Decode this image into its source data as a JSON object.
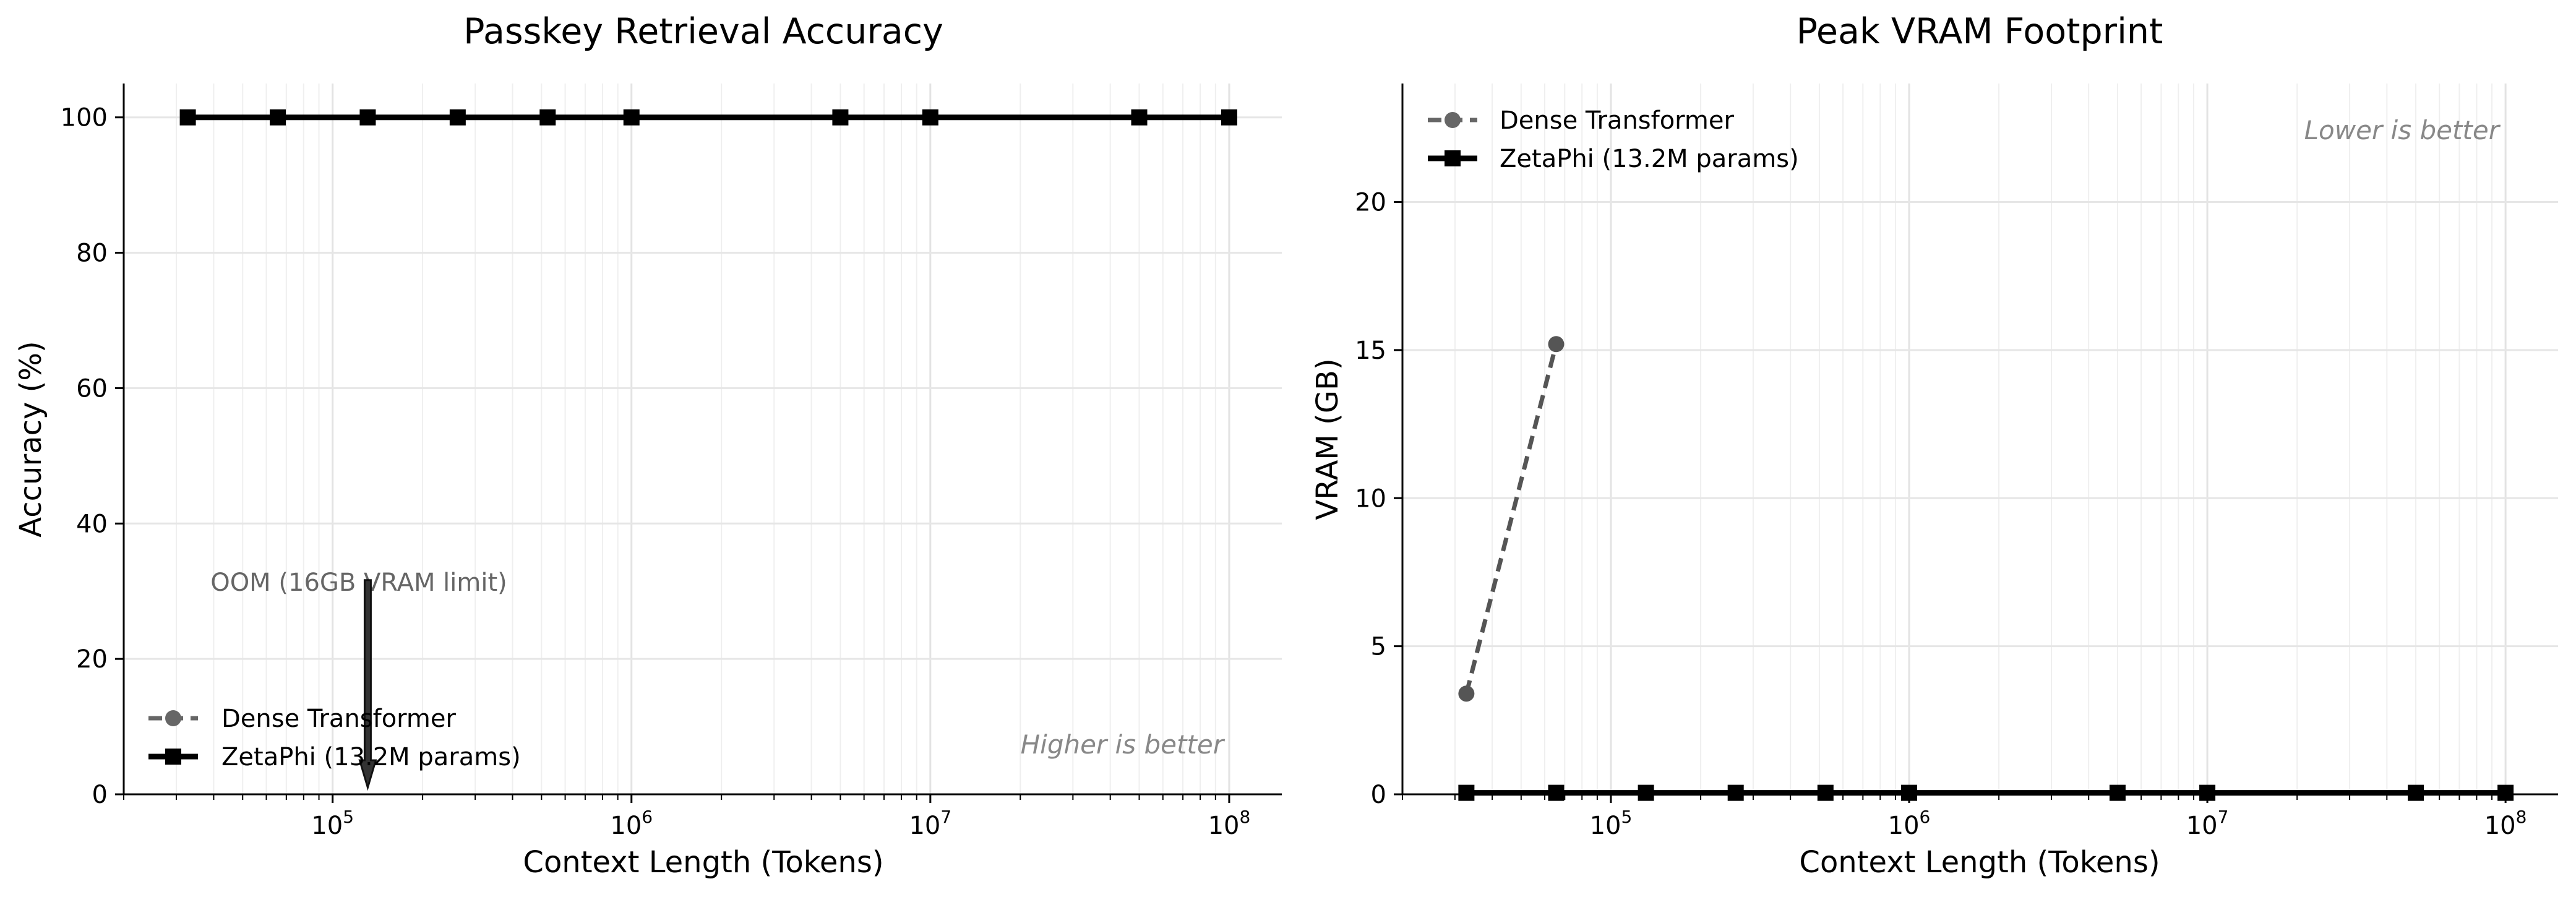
{
  "chart_data": [
    {
      "type": "line",
      "title": "Passkey Retrieval Accuracy",
      "xlabel": "Context Length (Tokens)",
      "ylabel": "Accuracy (%)",
      "xscale": "log",
      "xlim": [
        20000,
        150000000
      ],
      "ylim": [
        0,
        105
      ],
      "xticks": [
        {
          "value": 100000,
          "base": "10",
          "exp": "5"
        },
        {
          "value": 1000000,
          "base": "10",
          "exp": "6"
        },
        {
          "value": 10000000,
          "base": "10",
          "exp": "7"
        },
        {
          "value": 100000000,
          "base": "10",
          "exp": "8"
        }
      ],
      "yticks": [
        0,
        20,
        40,
        60,
        80,
        100
      ],
      "grid": true,
      "legend_position": "lower-left",
      "series": [
        {
          "name": "Dense Transformer",
          "color": "#666666",
          "marker": "circle",
          "linestyle": "dashed",
          "x": [],
          "y": []
        },
        {
          "name": "ZetaPhi (13.2M params)",
          "color": "#000000",
          "marker": "square",
          "linestyle": "solid",
          "x": [
            32768,
            65536,
            131072,
            262144,
            524288,
            1000000,
            5000000,
            10000000,
            50000000,
            100000000
          ],
          "y": [
            100,
            100,
            100,
            100,
            100,
            100,
            100,
            100,
            100,
            100
          ]
        }
      ],
      "annotations": [
        {
          "text": "OOM (16GB VRAM limit)",
          "x": 131072,
          "y": 30,
          "arrow_to_y": 1,
          "color": "#666666"
        },
        {
          "text": "Higher is better",
          "position": "lower-right",
          "italic": true,
          "color": "#888888"
        }
      ]
    },
    {
      "type": "line",
      "title": "Peak VRAM Footprint",
      "xlabel": "Context Length (Tokens)",
      "ylabel": "VRAM (GB)",
      "xscale": "log",
      "xlim": [
        20000,
        150000000
      ],
      "ylim": [
        0,
        24
      ],
      "xticks": [
        {
          "value": 100000,
          "base": "10",
          "exp": "5"
        },
        {
          "value": 1000000,
          "base": "10",
          "exp": "6"
        },
        {
          "value": 10000000,
          "base": "10",
          "exp": "7"
        },
        {
          "value": 100000000,
          "base": "10",
          "exp": "8"
        }
      ],
      "yticks": [
        0,
        5,
        10,
        15,
        20
      ],
      "grid": true,
      "legend_position": "upper-left",
      "series": [
        {
          "name": "Dense Transformer",
          "color": "#555555",
          "marker": "circle",
          "linestyle": "dashed",
          "x": [
            32768,
            65536
          ],
          "y": [
            3.4,
            15.2
          ]
        },
        {
          "name": "ZetaPhi (13.2M params)",
          "color": "#000000",
          "marker": "square",
          "linestyle": "solid",
          "x": [
            32768,
            65536,
            131072,
            262144,
            524288,
            1000000,
            5000000,
            10000000,
            50000000,
            100000000
          ],
          "y": [
            0.05,
            0.05,
            0.05,
            0.05,
            0.05,
            0.05,
            0.05,
            0.05,
            0.05,
            0.05
          ]
        }
      ],
      "annotations": [
        {
          "text": "Lower is better",
          "position": "upper-right",
          "italic": true,
          "color": "#888888"
        }
      ]
    }
  ]
}
